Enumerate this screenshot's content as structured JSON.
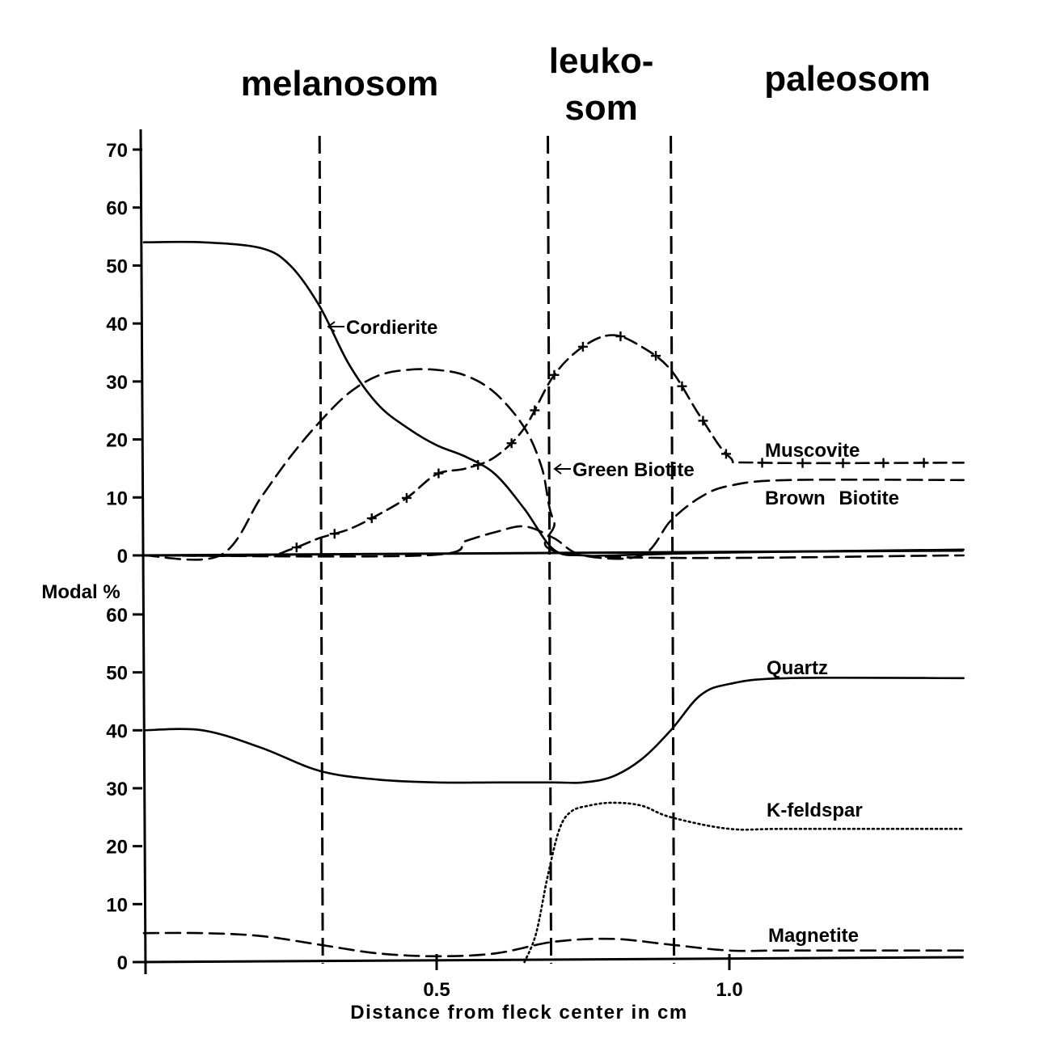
{
  "chart_data": {
    "type": "line",
    "xlabel": "Distance from fleck center in cm",
    "ylabel": "Modal %",
    "xlim": [
      0,
      1.4
    ],
    "x_ticks": [
      {
        "value": 0.5,
        "label": "0.5"
      },
      {
        "value": 1.0,
        "label": "1.0"
      }
    ],
    "zones": [
      {
        "label": "melanosom",
        "lines": [
          "melanosom"
        ],
        "from": 0.0,
        "to": 0.3
      },
      {
        "label": "leukosom",
        "lines": [
          "leuko-",
          "som"
        ],
        "from": 0.69,
        "to": 0.9
      },
      {
        "label": "paleosom",
        "lines": [
          "paleosom"
        ],
        "from": 0.9,
        "to": 1.4
      }
    ],
    "boundaries": [
      0.3,
      0.69,
      0.9
    ],
    "panels": [
      {
        "name": "upper",
        "ylim": [
          0,
          70
        ],
        "yticks": [
          0,
          10,
          20,
          30,
          40,
          50,
          60,
          70
        ],
        "series": [
          {
            "name": "Cordierite",
            "style": "solid",
            "x": [
              0,
              0.1,
              0.2,
              0.25,
              0.3,
              0.35,
              0.4,
              0.45,
              0.5,
              0.55,
              0.6,
              0.65,
              0.7,
              0.75,
              0.8,
              1.0,
              1.4
            ],
            "y": [
              54,
              54,
              53,
              50,
              43,
              33,
              26,
              22,
              19,
              17,
              14,
              8,
              1,
              0,
              0,
              0.5,
              1
            ]
          },
          {
            "name": "Green Biotite",
            "style": "dashed",
            "x": [
              0,
              0.13,
              0.2,
              0.25,
              0.3,
              0.35,
              0.4,
              0.45,
              0.5,
              0.55,
              0.6,
              0.65,
              0.68,
              0.7,
              0.75,
              1.4
            ],
            "y": [
              0,
              0,
              10,
              17,
              23,
              28,
              31,
              32,
              32,
              31,
              28,
              22,
              15,
              6,
              0,
              0
            ]
          },
          {
            "name": "Muscovite",
            "style": "dash-cross",
            "x": [
              0,
              0.2,
              0.25,
              0.3,
              0.35,
              0.4,
              0.45,
              0.5,
              0.55,
              0.6,
              0.65,
              0.7,
              0.75,
              0.8,
              0.85,
              0.9,
              0.95,
              1.0,
              1.05,
              1.4
            ],
            "y": [
              0,
              0,
              1,
              3,
              4.5,
              7,
              10,
              14,
              15,
              17,
              22,
              31,
              36,
              38,
              36,
              32,
              24,
              17,
              16,
              16
            ]
          },
          {
            "name": "Brown Biotite",
            "style": "dashed",
            "x": [
              0,
              0.48,
              0.55,
              0.6,
              0.65,
              0.7,
              0.75,
              0.85,
              0.9,
              0.95,
              1.0,
              1.1,
              1.4
            ],
            "y": [
              0,
              0,
              2.5,
              4,
              5,
              3,
              0,
              0,
              6,
              10,
              12,
              13,
              13
            ]
          }
        ]
      },
      {
        "name": "lower",
        "ylim": [
          0,
          60
        ],
        "yticks": [
          0,
          10,
          20,
          30,
          40,
          50,
          60
        ],
        "series": [
          {
            "name": "Quartz",
            "style": "solid",
            "x": [
              0,
              0.1,
              0.2,
              0.3,
              0.4,
              0.5,
              0.6,
              0.7,
              0.75,
              0.8,
              0.85,
              0.9,
              0.95,
              1.0,
              1.1,
              1.4
            ],
            "y": [
              40,
              40,
              37,
              33,
              31.5,
              31,
              31,
              31,
              31,
              32,
              35,
              40,
              46,
              48,
              49,
              49
            ]
          },
          {
            "name": "K-feldspar",
            "style": "dotted",
            "x": [
              0.65,
              0.67,
              0.69,
              0.71,
              0.73,
              0.76,
              0.8,
              0.85,
              0.9,
              1.0,
              1.1,
              1.4
            ],
            "y": [
              0,
              5,
              15,
              23,
              26,
              27,
              27.5,
              27,
              25,
              23,
              23,
              23
            ]
          },
          {
            "name": "Magnetite",
            "style": "dashed",
            "x": [
              0,
              0.1,
              0.2,
              0.3,
              0.4,
              0.5,
              0.6,
              0.7,
              0.8,
              0.9,
              1.0,
              1.1,
              1.4
            ],
            "y": [
              5,
              5,
              4.5,
              3,
              1.5,
              1,
              1.5,
              3.5,
              4,
              3,
              2,
              2,
              2
            ]
          }
        ]
      }
    ]
  }
}
